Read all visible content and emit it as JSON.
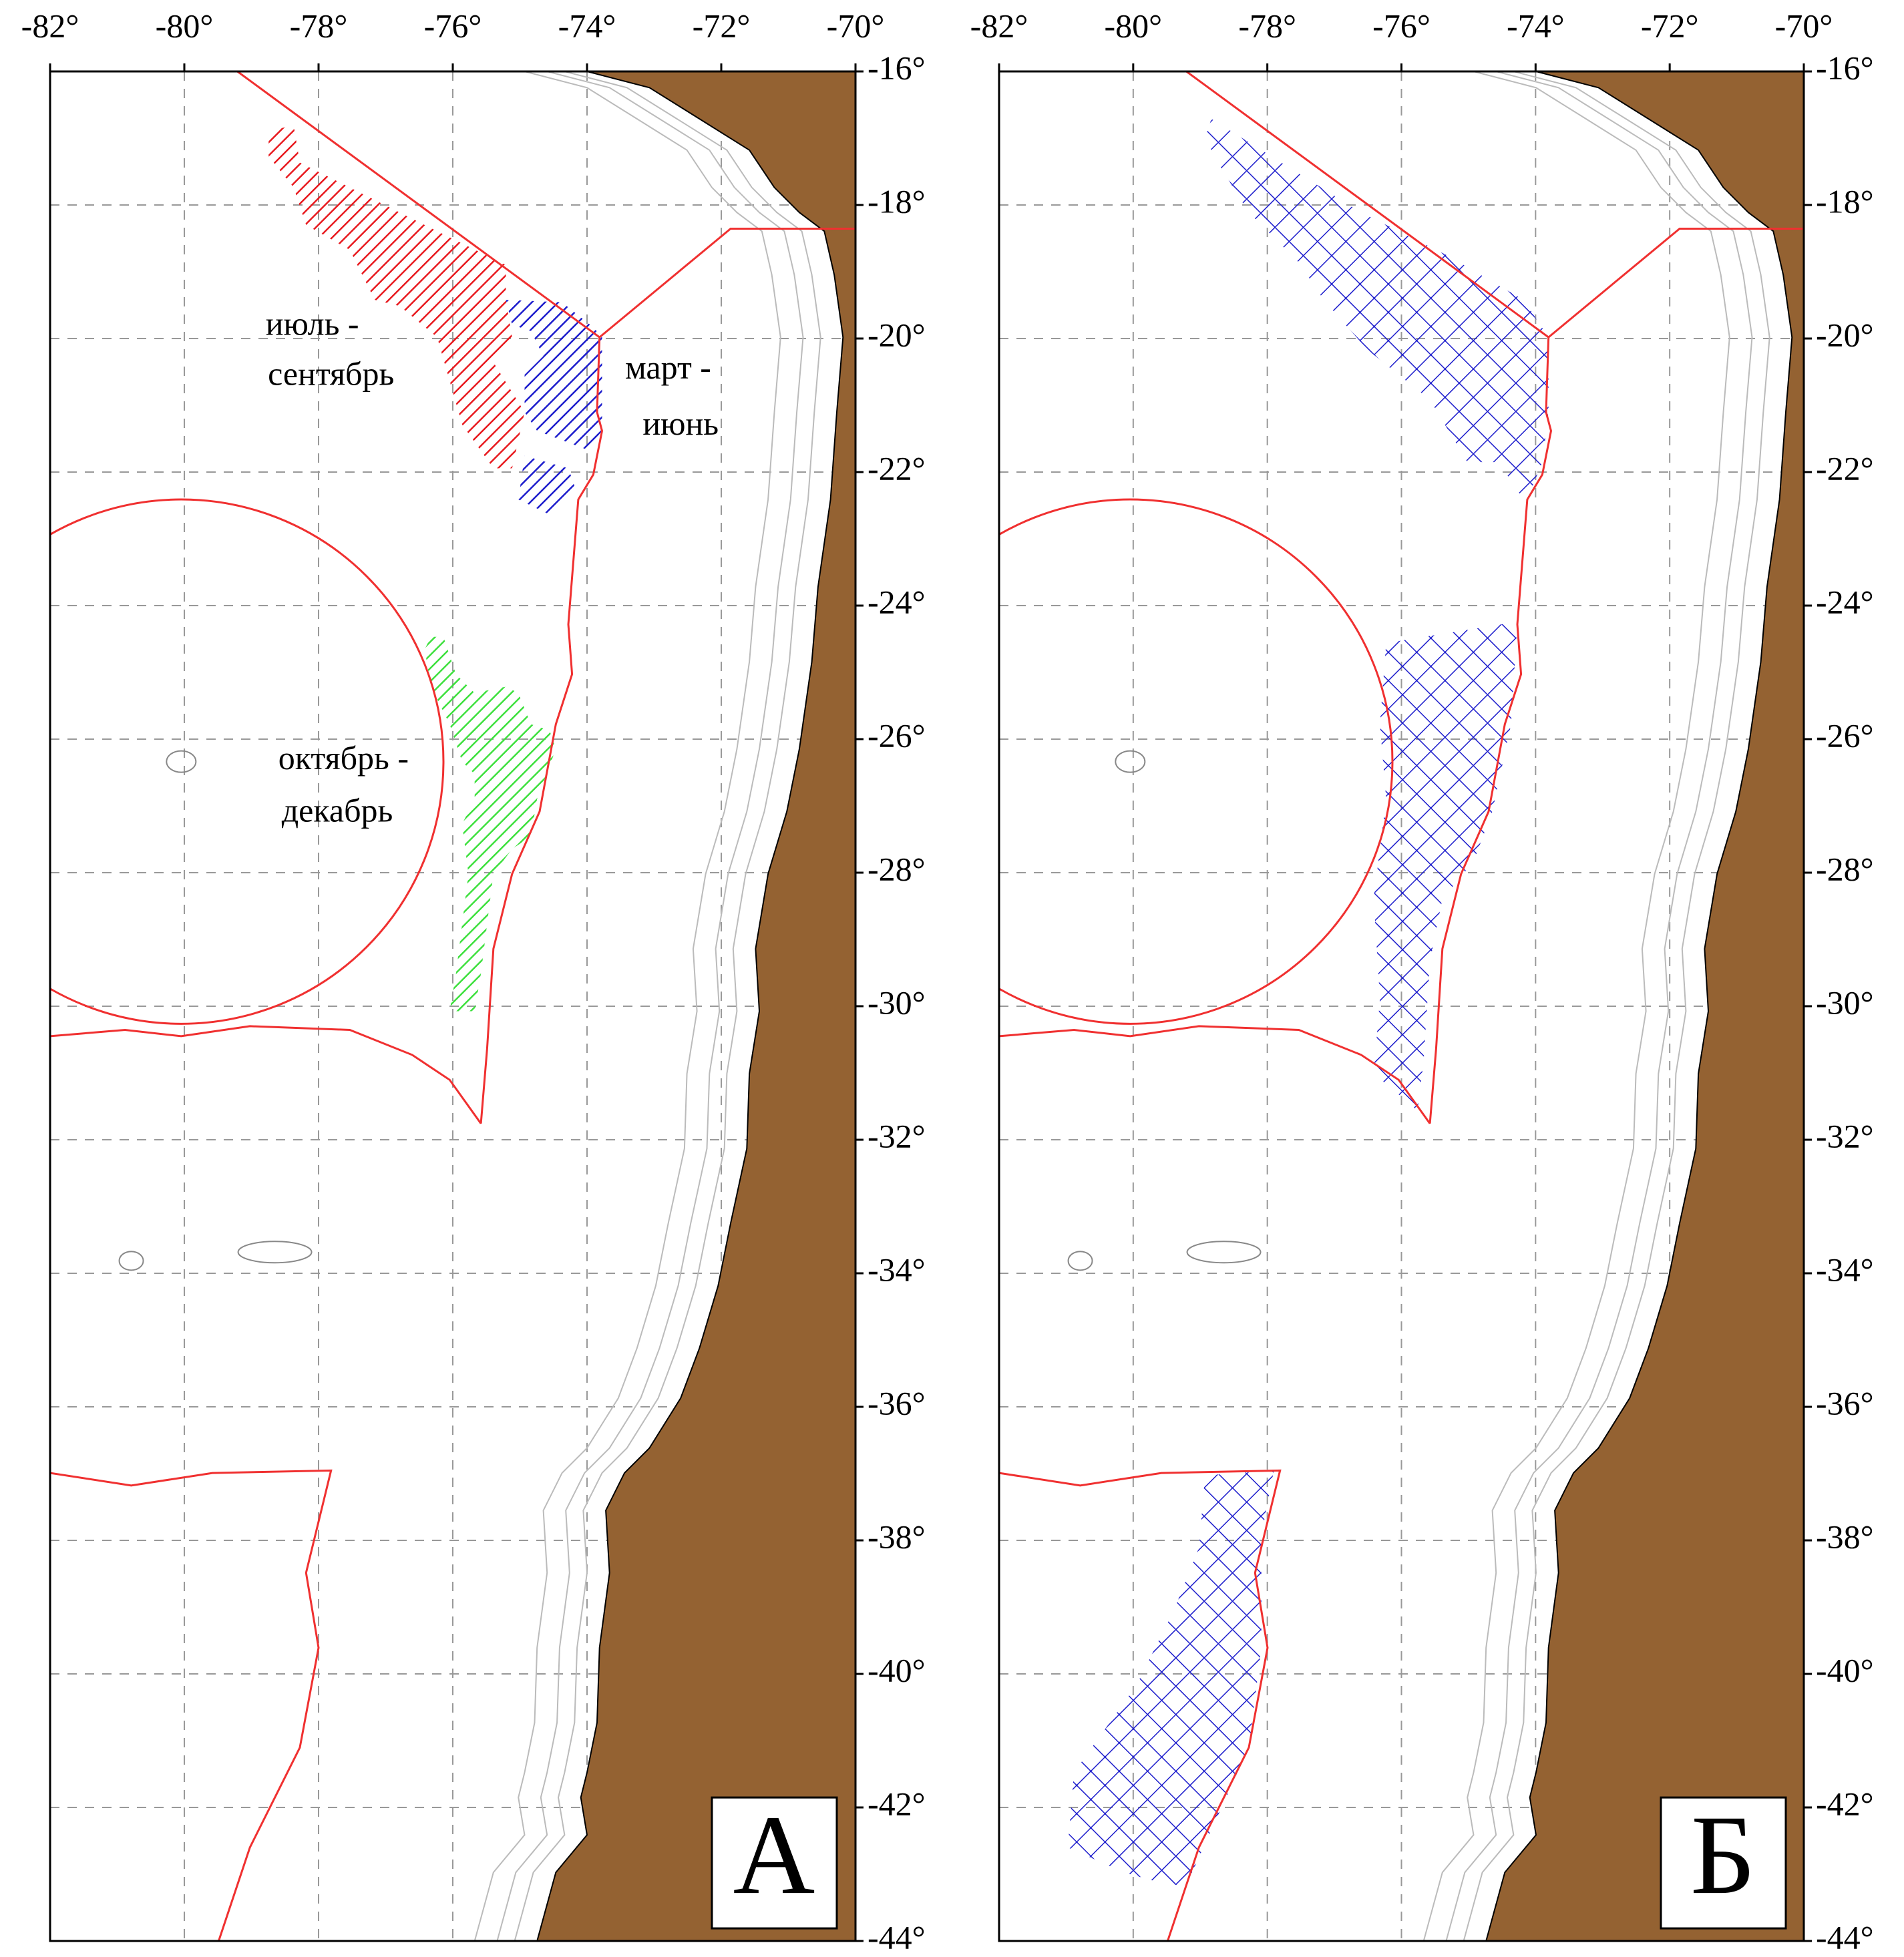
{
  "map": {
    "xlim": [
      -82,
      -70
    ],
    "ylim": [
      -44,
      -16
    ],
    "xticks": [
      {
        "value": -82,
        "label": "-82°"
      },
      {
        "value": -80,
        "label": "-80°"
      },
      {
        "value": -78,
        "label": "-78°"
      },
      {
        "value": -76,
        "label": "-76°"
      },
      {
        "value": -74,
        "label": "-74°"
      },
      {
        "value": -72,
        "label": "-72°"
      },
      {
        "value": -70,
        "label": "-70°"
      }
    ],
    "yticks": [
      {
        "value": -16,
        "label": "-16°"
      },
      {
        "value": -18,
        "label": "-18°"
      },
      {
        "value": -20,
        "label": "-20°"
      },
      {
        "value": -22,
        "label": "-22°"
      },
      {
        "value": -24,
        "label": "-24°"
      },
      {
        "value": -26,
        "label": "-26°"
      },
      {
        "value": -28,
        "label": "-28°"
      },
      {
        "value": -30,
        "label": "-30°"
      },
      {
        "value": -32,
        "label": "-32°"
      },
      {
        "value": -34,
        "label": "-34°"
      },
      {
        "value": -36,
        "label": "-36°"
      },
      {
        "value": -38,
        "label": "-38°"
      },
      {
        "value": -40,
        "label": "-40°"
      },
      {
        "value": -42,
        "label": "-42°"
      },
      {
        "value": -44,
        "label": "-44°"
      }
    ],
    "panels": [
      {
        "label": "А",
        "regions": [
          [
            "июль -",
            "сентябрь"
          ],
          [
            "март -",
            "июнь"
          ],
          [
            "октябрь -",
            "декабрь"
          ]
        ]
      },
      {
        "label": "Б"
      }
    ]
  }
}
